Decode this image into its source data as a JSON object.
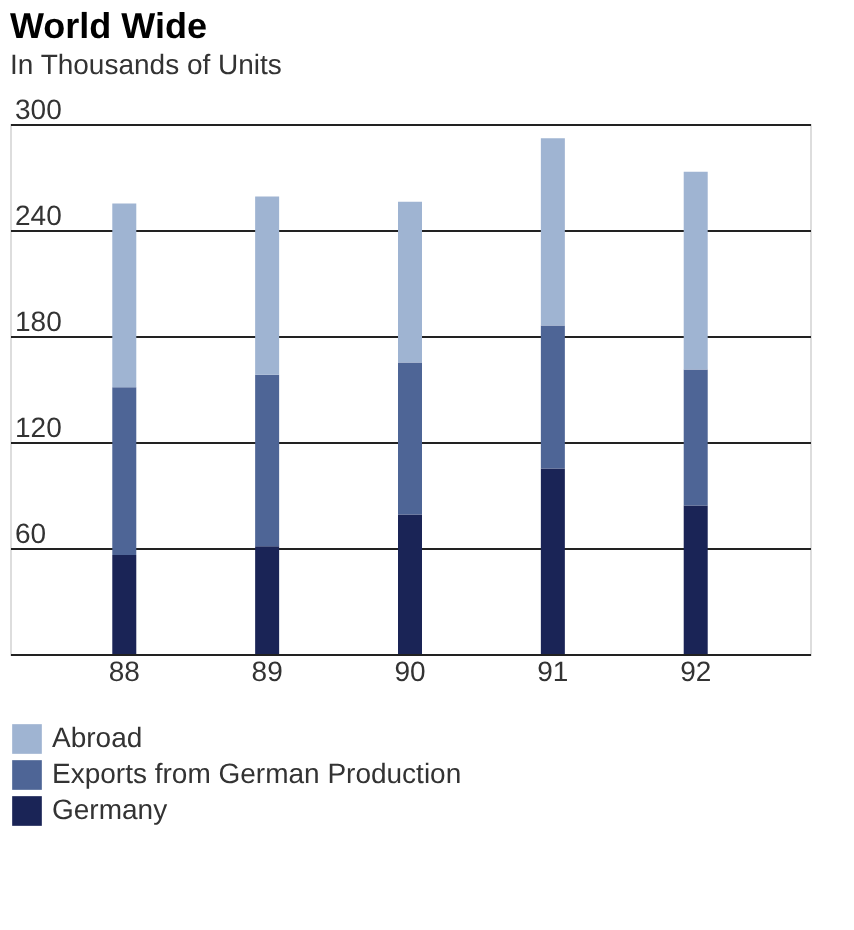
{
  "chart_data": {
    "type": "bar",
    "title": "World Wide",
    "subtitle": "In Thousands of Units",
    "categories": [
      "88",
      "89",
      "90",
      "91",
      "92"
    ],
    "stacked": true,
    "series": [
      {
        "name": "Germany",
        "color": "#1a2456",
        "values": [
          56,
          61,
          79,
          105,
          84
        ]
      },
      {
        "name": "Exports from German Production",
        "color": "#4e6596",
        "values": [
          95,
          97,
          86,
          81,
          77
        ]
      },
      {
        "name": "Abroad",
        "color": "#9fb4d2",
        "values": [
          104,
          101,
          91,
          106,
          112
        ]
      }
    ],
    "ylim": [
      0,
      300
    ],
    "yticks": [
      {
        "value": 0,
        "label": null
      },
      60,
      120,
      180,
      240,
      300
    ],
    "grid": "y",
    "legend": "bottom"
  }
}
